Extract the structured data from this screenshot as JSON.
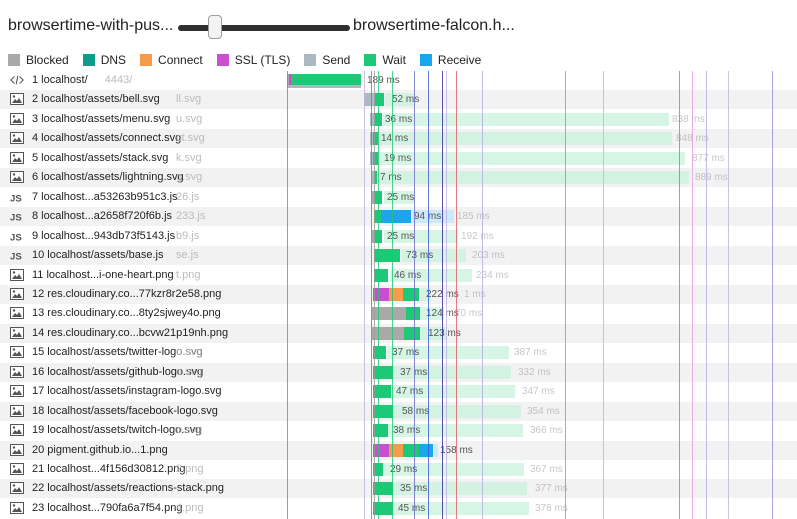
{
  "comparison": {
    "left_run": "browsertime-with-pus...",
    "right_run": "browsertime-falcon.h..."
  },
  "legend": [
    {
      "label": "Blocked",
      "color": "#a9a9a9"
    },
    {
      "label": "DNS",
      "color": "#0e9c8c"
    },
    {
      "label": "Connect",
      "color": "#f59b4a"
    },
    {
      "label": "SSL (TLS)",
      "color": "#c94fd0"
    },
    {
      "label": "Send",
      "color": "#adb9c1"
    },
    {
      "label": "Wait",
      "color": "#1dc876"
    },
    {
      "label": "Receive",
      "color": "#1aa6ef"
    }
  ],
  "icon_names": {
    "html": "html-icon",
    "image": "image-icon",
    "js": "js-icon"
  },
  "requests": [
    {
      "label": "1 localhost/",
      "ghost_label": "4443/",
      "icon": "html",
      "dur": "189 ms"
    },
    {
      "label": "2 localhost/assets/bell.svg",
      "ghost_label": "ll.svg",
      "icon": "image",
      "dur": "52 ms",
      "dur_ghost": ""
    },
    {
      "label": "3 localhost/assets/menu.svg",
      "ghost_label": "u.svg",
      "icon": "image",
      "dur": "36 ms",
      "dur_ghost": "838 ms"
    },
    {
      "label": "4 localhost/assets/connect.svg",
      "ghost_label": "ct.svg",
      "icon": "image",
      "dur": "14 ms",
      "dur_ghost": "848 ms"
    },
    {
      "label": "5 localhost/assets/stack.svg",
      "ghost_label": "k.svg",
      "icon": "image",
      "dur": "19 ms",
      "dur_ghost": "877 ms"
    },
    {
      "label": "6 localhost/assets/lightning.svg",
      "ghost_label": "g.svg",
      "icon": "image",
      "dur": "7 ms",
      "dur_ghost": "889 ms"
    },
    {
      "label": "7 localhost...a53263b951c3.js",
      "ghost_label": "26.js",
      "icon": "js",
      "dur": "25 ms",
      "dur_ghost": ""
    },
    {
      "label": "8 localhost...a2658f720f6b.js",
      "ghost_label": "233.js",
      "icon": "js",
      "dur": "94 ms",
      "dur_ghost": "185 ms"
    },
    {
      "label": "9 localhost...943db73f5143.js",
      "ghost_label": "b9.js",
      "icon": "js",
      "dur": "25 ms",
      "dur_ghost": "192 ms"
    },
    {
      "label": "10 localhost/assets/base.js",
      "ghost_label": "se.js",
      "icon": "js",
      "dur": "73 ms",
      "dur_ghost": "203 ms"
    },
    {
      "label": "11 localhost...i-one-heart.png",
      "ghost_label": "t.png",
      "icon": "image",
      "dur": "46 ms",
      "dur_ghost": "234 ms"
    },
    {
      "label": "12 res.cloudinary.co...77kzr8r2e58.png",
      "ghost_label": "",
      "icon": "image",
      "dur": "222 ms",
      "dur_ghost": "1 ms"
    },
    {
      "label": "13 res.cloudinary.co...8ty2sjwey4o.png",
      "ghost_label": "",
      "icon": "image",
      "dur": "124 ms",
      "dur_ghost": "70 ms"
    },
    {
      "label": "14 res.cloudinary.co...bcvw21p19nh.png",
      "ghost_label": "",
      "icon": "image",
      "dur": "123 ms",
      "dur_ghost": ""
    },
    {
      "label": "15 localhost/assets/twitter-logo.svg",
      "ghost_label": "o.svg",
      "icon": "image",
      "dur": "37 ms",
      "dur_ghost": "387 ms"
    },
    {
      "label": "16 localhost/assets/github-logo.svg",
      "ghost_label": "o.svg",
      "icon": "image",
      "dur": "37 ms",
      "dur_ghost": "332 ms"
    },
    {
      "label": "17 localhost/assets/instagram-logo.svg",
      "ghost_label": "",
      "icon": "image",
      "dur": "47 ms",
      "dur_ghost": "347 ms"
    },
    {
      "label": "18 localhost/assets/facebook-logo.svg",
      "ghost_label": "",
      "icon": "image",
      "dur": "58 ms",
      "dur_ghost": "354 ms"
    },
    {
      "label": "19 localhost/assets/twitch-logo.svg",
      "ghost_label": "o.svg",
      "icon": "image",
      "dur": "38 ms",
      "dur_ghost": "366 ms"
    },
    {
      "label": "20 pigment.github.io...1.png",
      "ghost_label": "",
      "icon": "image",
      "dur": "158 ms",
      "dur_ghost": ""
    },
    {
      "label": "21 localhost...4f156d30812.png",
      "ghost_label": "2.png",
      "icon": "image",
      "dur": "29 ms",
      "dur_ghost": "367 ms"
    },
    {
      "label": "22 localhost/assets/reactions-stack.png",
      "ghost_label": "",
      "icon": "image",
      "dur": "35 ms",
      "dur_ghost": "377 ms"
    },
    {
      "label": "23 localhost...790fa6a7f54.png",
      "ghost_label": "4.png",
      "icon": "image",
      "dur": "45 ms",
      "dur_ghost": "378 ms"
    }
  ]
}
